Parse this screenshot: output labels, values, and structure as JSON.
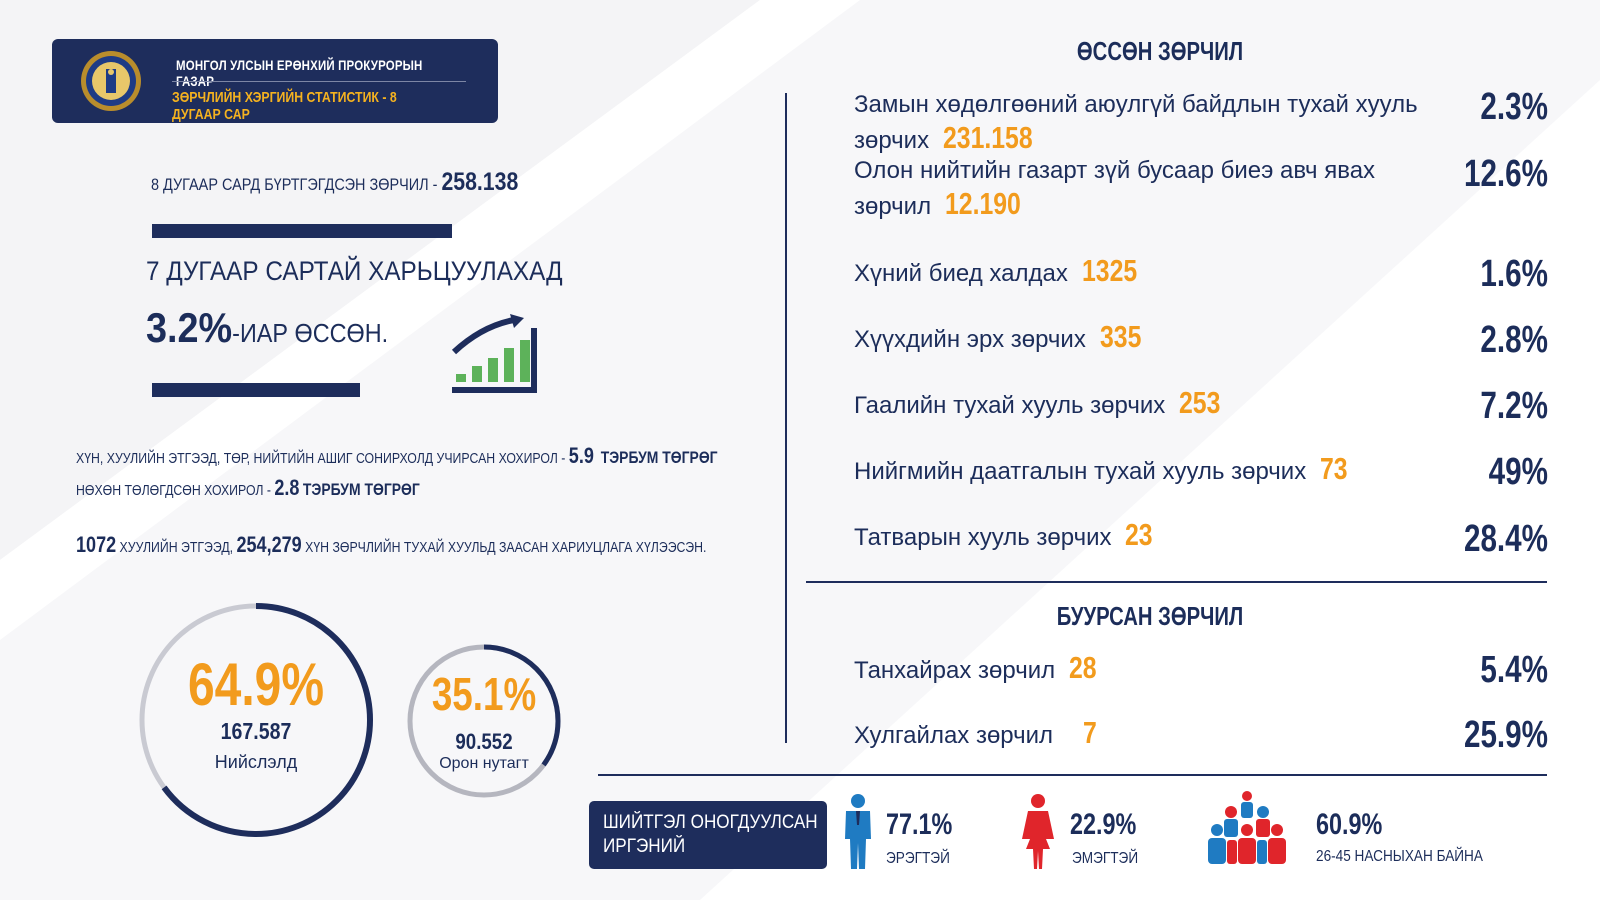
{
  "header": {
    "org": "МОНГОЛ УЛСЫН ЕРӨНХИЙ ПРОКУРОРЫН ГАЗАР",
    "subtitle": "ЗӨРЧЛИЙН ХЭРГИЙН СТАТИСТИК - 8 ДУГААР САР"
  },
  "registered": {
    "label": "8 ДУГААР САРД БҮРТГЭГДСЭН ЗӨРЧИЛ - ",
    "value": "258.138"
  },
  "comparison": {
    "line1": "7 ДУГААР САРТАЙ ХАРЬЦУУЛАХАД",
    "percent": "3.2%",
    "suffix": "-ИАР ӨССӨН."
  },
  "damages": {
    "line1_label": "ХҮН, ХУУЛИЙН ЭТГЭЭД, ТӨР, НИЙТИЙН АШИГ СОНИРХОЛД УЧИРСАН ХОХИРОЛ - ",
    "line1_value": "5.9",
    "line1_unit": "ТЭРБУМ ТӨГРӨГ",
    "line2_label": "НӨХӨН ТӨЛӨГДСӨН ХОХИРОЛ - ",
    "line2_value": "2.8",
    "line2_unit": "ТЭРБУМ ТӨГРӨГ",
    "line3_v1": "1072",
    "line3_t1": " ХУУЛИЙН ЭТГЭЭД, ",
    "line3_v2": "254,279",
    "line3_t2": " ХҮН ЗӨРЧЛИЙН ТУХАЙ ХУУЛЬД ЗААСАН ХАРИУЦЛАГА ХҮЛЭЭСЭН."
  },
  "capital": {
    "percent": "64.9%",
    "count": "167.587",
    "label": "Нийслэлд",
    "share": 0.649
  },
  "rural": {
    "percent": "35.1%",
    "count": "90.552",
    "label": "Орон нутагт",
    "share": 0.351
  },
  "increased": {
    "title": "ӨССӨН ЗӨРЧИЛ",
    "items": [
      {
        "text": "Замын хөдөлгөөний аюулгүй байдлын тухай хууль зөрчих",
        "value": "231.158",
        "percent": "2.3%"
      },
      {
        "text": "Олон нийтийн газарт зүй бусаар биеэ авч явах зөрчил",
        "value": "12.190",
        "percent": "12.6%"
      },
      {
        "text": "Хүний биед халдах",
        "value": "1325",
        "percent": "1.6%"
      },
      {
        "text": "Хүүхдийн эрх зөрчих",
        "value": "335",
        "percent": "2.8%"
      },
      {
        "text": "Гаалийн тухай хууль зөрчих",
        "value": "253",
        "percent": "7.2%"
      },
      {
        "text": "Нийгмийн даатгалын тухай хууль зөрчих",
        "value": "73",
        "percent": "49%"
      },
      {
        "text": "Татварын хууль зөрчих",
        "value": "23",
        "percent": "28.4%"
      }
    ]
  },
  "decreased": {
    "title": "БУУРСАН ЗӨРЧИЛ",
    "items": [
      {
        "text": "Танхайрах зөрчил",
        "value": "28",
        "percent": "5.4%"
      },
      {
        "text": "Хулгайлах зөрчил",
        "value": "7",
        "percent": "25.9%"
      }
    ]
  },
  "penalized": {
    "box_line1": "ШИЙТГЭЛ ОНОГДУУЛСАН",
    "box_line2": "ИРГЭНИЙ",
    "male_percent": "77.1%",
    "male_label": "ЭРЭГТЭЙ",
    "female_percent": "22.9%",
    "female_label": "ЭМЭГТЭЙ",
    "age_percent": "60.9%",
    "age_label": "26-45 НАСНЫХАН БАЙНА"
  },
  "colors": {
    "navy": "#1e2d5c",
    "orange": "#f29b1d",
    "male": "#1f7bc2",
    "female": "#e0252b",
    "green": "#5db25a"
  }
}
